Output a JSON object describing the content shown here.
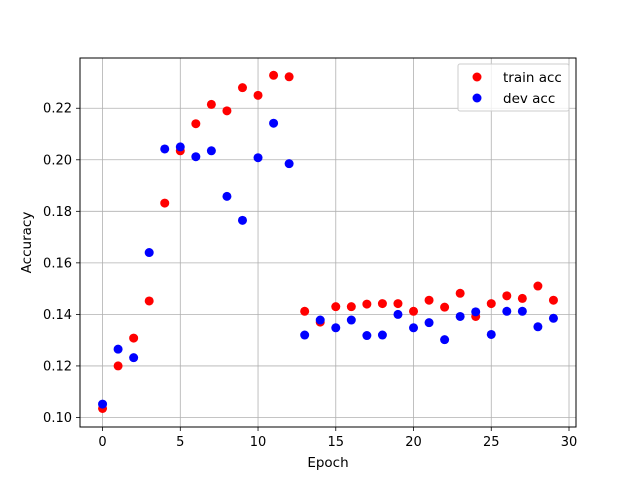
{
  "chart_data": {
    "type": "scatter",
    "title": "",
    "xlabel": "Epoch",
    "ylabel": "Accuracy",
    "xlim": [
      -1.45,
      30.45
    ],
    "ylim": [
      0.0963,
      0.2395
    ],
    "xticks": [
      0,
      5,
      10,
      15,
      20,
      25,
      30
    ],
    "xtick_labels": [
      "0",
      "5",
      "10",
      "15",
      "20",
      "25",
      "30"
    ],
    "yticks": [
      0.1,
      0.12,
      0.14,
      0.16,
      0.18,
      0.2,
      0.22
    ],
    "ytick_labels": [
      "0.10",
      "0.12",
      "0.14",
      "0.16",
      "0.18",
      "0.20",
      "0.22"
    ],
    "grid": true,
    "legend_position": "top-right",
    "x": [
      0,
      1,
      2,
      3,
      4,
      5,
      6,
      7,
      8,
      9,
      10,
      11,
      12,
      13,
      14,
      15,
      16,
      17,
      18,
      19,
      20,
      21,
      22,
      23,
      24,
      25,
      26,
      27,
      28,
      29
    ],
    "series": [
      {
        "name": "train acc",
        "color": "#ff0000",
        "values": [
          0.1035,
          0.12,
          0.1308,
          0.1452,
          0.1832,
          0.2035,
          0.214,
          0.2215,
          0.219,
          0.228,
          0.225,
          0.2328,
          0.2322,
          0.1412,
          0.137,
          0.143,
          0.143,
          0.144,
          0.1442,
          0.1442,
          0.1412,
          0.1455,
          0.1428,
          0.1482,
          0.1392,
          0.1442,
          0.1472,
          0.1462,
          0.151,
          0.1455
        ]
      },
      {
        "name": "dev acc",
        "color": "#0000ff",
        "values": [
          0.1052,
          0.1265,
          0.1232,
          0.164,
          0.2042,
          0.205,
          0.2012,
          0.2035,
          0.1858,
          0.1765,
          0.2008,
          0.2142,
          0.1985,
          0.132,
          0.1378,
          0.1348,
          0.1378,
          0.1318,
          0.132,
          0.14,
          0.1348,
          0.1368,
          0.1302,
          0.1392,
          0.141,
          0.1322,
          0.1412,
          0.1412,
          0.1352,
          0.1385
        ]
      }
    ]
  }
}
